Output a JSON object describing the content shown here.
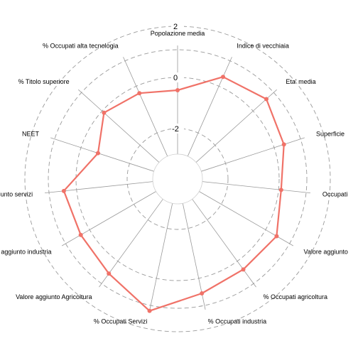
{
  "chart_data": {
    "type": "radar",
    "radial_range": [
      -3,
      3
    ],
    "radial_ticks": [
      {
        "value": 2,
        "label": "2"
      },
      {
        "value": 0,
        "label": "0"
      },
      {
        "value": -2,
        "label": "-2"
      }
    ],
    "grid_style": "dashed circles",
    "series_color": "#F07268",
    "axes": [
      {
        "label": "Popolazione media",
        "value": -0.5
      },
      {
        "label": "Indice di vecchiaia",
        "value": 0.4
      },
      {
        "label": "Eta' media",
        "value": 0.7
      },
      {
        "label": "Superficie",
        "value": 0.4
      },
      {
        "label": "Occupati",
        "value": 0.1
      },
      {
        "label": "Valore aggiunto",
        "value": 0.5
      },
      {
        "label": "% Occupati agricoltura",
        "value": 0.4
      },
      {
        "label": "% Occupati industria",
        "value": 0.6
      },
      {
        "label": "% Occupati Servizi",
        "value": 1.3
      },
      {
        "label": "Valore aggiunto Agricoltura",
        "value": 0.6
      },
      {
        "label": "Valore aggiunto industria",
        "value": 0.4
      },
      {
        "label": "Valore aggiunto servizi",
        "value": 0.5
      },
      {
        "label": "NEET",
        "value": -0.7
      },
      {
        "label": "% Titolo superiore",
        "value": -0.1
      },
      {
        "label": "% Occupati alta tecnologia",
        "value": -0.3
      }
    ]
  }
}
